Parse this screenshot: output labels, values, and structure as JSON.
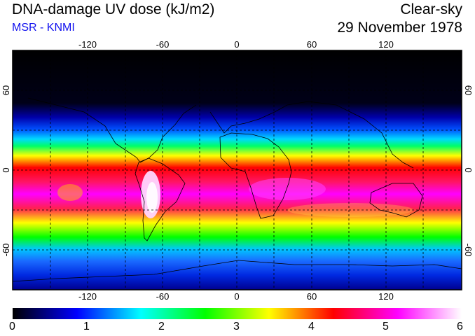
{
  "header": {
    "title": "DNA-damage UV dose (kJ/m2)",
    "subtitle": "MSR - KNMI",
    "mode": "Clear-sky",
    "date": "29 November 1978"
  },
  "colors": {
    "subtitle": "#1010ee",
    "frame": "#000000",
    "grid": "#000000"
  },
  "map": {
    "longitude_ticks": [
      "-120",
      "-60",
      "0",
      "60",
      "120"
    ],
    "latitude_ticks": [
      "60",
      "0",
      "-60"
    ],
    "longitude_range": [
      -180,
      180
    ],
    "latitude_range": [
      -90,
      90
    ]
  },
  "colorbar": {
    "labels": [
      "0",
      "1",
      "2",
      "3",
      "4",
      "5",
      "6"
    ],
    "min": 0,
    "max": 6,
    "stops": [
      "#000000",
      "#0000ff",
      "#00ffff",
      "#00ff00",
      "#ffff00",
      "#ff0000",
      "#ff00ff",
      "#ffffff"
    ]
  }
}
